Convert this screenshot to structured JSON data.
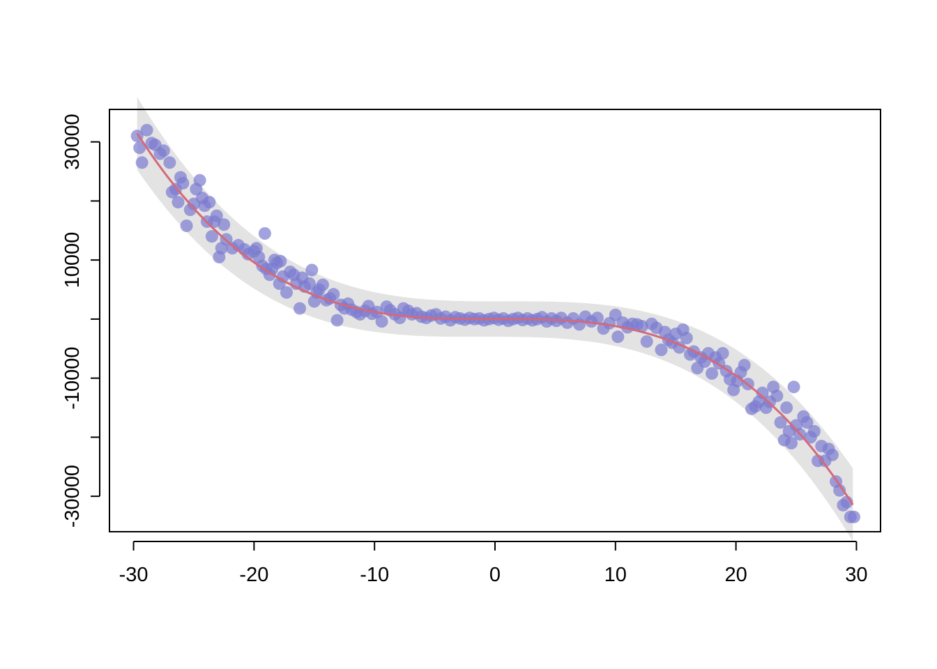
{
  "chart_data": {
    "type": "scatter",
    "title": "",
    "xlabel": "",
    "ylabel": "",
    "xlim": [
      -32,
      32
    ],
    "ylim": [
      -36000,
      35500
    ],
    "x_ticks": [
      "-30",
      "-20",
      "-10",
      "0",
      "10",
      "20",
      "30"
    ],
    "y_ticks": [
      "-30000",
      "-10000",
      "10000",
      "30000"
    ],
    "grid": false,
    "legend": "none",
    "colors": {
      "points": "#7b7bd0",
      "fit": "#d4697a",
      "band": "#e3e3e3"
    },
    "x_tick_values": [
      -30,
      -20,
      -10,
      0,
      10,
      20,
      30
    ],
    "y_tick_values": [
      -30000,
      -10000,
      10000,
      30000
    ],
    "fit_coefficients": [
      0,
      0,
      0,
      -1.2
    ],
    "band_halfwidth": [
      3000,
      0,
      3.6
    ],
    "points": [
      [
        -29.7,
        31000
      ],
      [
        -29.5,
        29000
      ],
      [
        -29.3,
        26500
      ],
      [
        -28.9,
        32000
      ],
      [
        -28.5,
        29800
      ],
      [
        -28.2,
        29500
      ],
      [
        -27.8,
        28000
      ],
      [
        -27.5,
        28500
      ],
      [
        -27.0,
        26500
      ],
      [
        -26.8,
        21500
      ],
      [
        -26.5,
        22000
      ],
      [
        -26.3,
        19800
      ],
      [
        -26.1,
        24000
      ],
      [
        -25.9,
        23000
      ],
      [
        -25.6,
        15800
      ],
      [
        -25.3,
        18500
      ],
      [
        -25.0,
        19500
      ],
      [
        -24.8,
        22000
      ],
      [
        -24.5,
        23500
      ],
      [
        -24.3,
        20500
      ],
      [
        -24.1,
        19200
      ],
      [
        -23.9,
        16500
      ],
      [
        -23.7,
        19800
      ],
      [
        -23.5,
        14000
      ],
      [
        -23.3,
        16500
      ],
      [
        -23.1,
        17500
      ],
      [
        -22.9,
        10500
      ],
      [
        -22.7,
        12000
      ],
      [
        -22.5,
        16000
      ],
      [
        -22.3,
        13500
      ],
      [
        -21.8,
        12000
      ],
      [
        -21.3,
        12500
      ],
      [
        -20.8,
        11800
      ],
      [
        -20.5,
        11000
      ],
      [
        -20.0,
        11500
      ],
      [
        -19.8,
        12000
      ],
      [
        -19.6,
        10500
      ],
      [
        -19.3,
        9000
      ],
      [
        -19.1,
        14500
      ],
      [
        -19.0,
        8500
      ],
      [
        -18.7,
        7500
      ],
      [
        -18.5,
        8500
      ],
      [
        -18.3,
        10000
      ],
      [
        -18.1,
        9500
      ],
      [
        -17.9,
        6000
      ],
      [
        -17.8,
        9800
      ],
      [
        -17.6,
        7200
      ],
      [
        -17.3,
        4500
      ],
      [
        -17.0,
        8000
      ],
      [
        -16.7,
        7500
      ],
      [
        -16.5,
        6000
      ],
      [
        -16.2,
        1800
      ],
      [
        -16.0,
        7000
      ],
      [
        -15.8,
        5500
      ],
      [
        -15.4,
        6000
      ],
      [
        -15.2,
        8300
      ],
      [
        -15.0,
        3000
      ],
      [
        -14.8,
        4500
      ],
      [
        -14.6,
        5000
      ],
      [
        -14.3,
        5800
      ],
      [
        -14.0,
        3200
      ],
      [
        -13.7,
        3500
      ],
      [
        -13.4,
        4200
      ],
      [
        -13.1,
        -200
      ],
      [
        -12.8,
        2400
      ],
      [
        -12.5,
        1800
      ],
      [
        -12.2,
        2600
      ],
      [
        -11.9,
        1600
      ],
      [
        -11.5,
        1200
      ],
      [
        -11.2,
        800
      ],
      [
        -10.8,
        1400
      ],
      [
        -10.5,
        2200
      ],
      [
        -10.2,
        900
      ],
      [
        -9.8,
        1200
      ],
      [
        -9.4,
        -400
      ],
      [
        -9.0,
        2100
      ],
      [
        -8.7,
        1500
      ],
      [
        -8.3,
        800
      ],
      [
        -7.9,
        200
      ],
      [
        -7.6,
        1800
      ],
      [
        -7.2,
        1400
      ],
      [
        -6.9,
        800
      ],
      [
        -6.5,
        1000
      ],
      [
        -6.1,
        400
      ],
      [
        -5.7,
        200
      ],
      [
        -5.3,
        600
      ],
      [
        -4.9,
        800
      ],
      [
        -4.5,
        100
      ],
      [
        -4.1,
        400
      ],
      [
        -3.7,
        -200
      ],
      [
        -3.3,
        300
      ],
      [
        -2.9,
        100
      ],
      [
        -2.5,
        -100
      ],
      [
        -2.1,
        200
      ],
      [
        -1.7,
        0
      ],
      [
        -1.3,
        100
      ],
      [
        -0.9,
        -200
      ],
      [
        -0.5,
        0
      ],
      [
        -0.1,
        200
      ],
      [
        0.3,
        -100
      ],
      [
        0.7,
        100
      ],
      [
        1.1,
        -300
      ],
      [
        1.5,
        0
      ],
      [
        1.9,
        200
      ],
      [
        2.3,
        -150
      ],
      [
        2.7,
        100
      ],
      [
        3.1,
        -200
      ],
      [
        3.5,
        0
      ],
      [
        3.9,
        300
      ],
      [
        4.3,
        -400
      ],
      [
        4.7,
        100
      ],
      [
        5.1,
        -300
      ],
      [
        5.5,
        200
      ],
      [
        6.0,
        -600
      ],
      [
        6.5,
        100
      ],
      [
        7.0,
        -900
      ],
      [
        7.5,
        400
      ],
      [
        8.0,
        -400
      ],
      [
        8.5,
        200
      ],
      [
        9.0,
        -1600
      ],
      [
        9.5,
        -700
      ],
      [
        10.0,
        700
      ],
      [
        10.2,
        -3000
      ],
      [
        10.6,
        -600
      ],
      [
        11.0,
        -1400
      ],
      [
        11.4,
        -800
      ],
      [
        11.8,
        -900
      ],
      [
        12.2,
        -1200
      ],
      [
        12.6,
        -3800
      ],
      [
        13.0,
        -800
      ],
      [
        13.4,
        -1500
      ],
      [
        13.8,
        -5200
      ],
      [
        14.1,
        -2200
      ],
      [
        14.4,
        -3500
      ],
      [
        14.7,
        -4000
      ],
      [
        15.0,
        -2500
      ],
      [
        15.3,
        -4800
      ],
      [
        15.6,
        -1800
      ],
      [
        15.9,
        -3200
      ],
      [
        16.2,
        -6000
      ],
      [
        16.5,
        -5500
      ],
      [
        16.8,
        -8300
      ],
      [
        17.1,
        -6500
      ],
      [
        17.4,
        -7200
      ],
      [
        17.7,
        -5800
      ],
      [
        18.0,
        -9200
      ],
      [
        18.3,
        -6500
      ],
      [
        18.6,
        -7500
      ],
      [
        18.9,
        -5800
      ],
      [
        19.2,
        -8800
      ],
      [
        19.5,
        -10200
      ],
      [
        19.8,
        -12000
      ],
      [
        20.1,
        -10500
      ],
      [
        20.4,
        -9000
      ],
      [
        20.7,
        -7800
      ],
      [
        21.0,
        -11000
      ],
      [
        21.3,
        -15200
      ],
      [
        21.6,
        -14800
      ],
      [
        21.9,
        -14000
      ],
      [
        22.2,
        -12500
      ],
      [
        22.5,
        -15000
      ],
      [
        22.8,
        -14000
      ],
      [
        23.1,
        -11500
      ],
      [
        23.4,
        -13000
      ],
      [
        23.7,
        -17500
      ],
      [
        24.0,
        -20500
      ],
      [
        24.2,
        -15000
      ],
      [
        24.4,
        -19000
      ],
      [
        24.6,
        -21000
      ],
      [
        24.8,
        -11500
      ],
      [
        25.0,
        -18000
      ],
      [
        25.3,
        -19500
      ],
      [
        25.6,
        -16500
      ],
      [
        25.9,
        -17500
      ],
      [
        26.2,
        -20000
      ],
      [
        26.5,
        -19000
      ],
      [
        26.8,
        -24000
      ],
      [
        27.1,
        -21500
      ],
      [
        27.4,
        -24000
      ],
      [
        27.7,
        -22000
      ],
      [
        28.0,
        -23000
      ],
      [
        28.3,
        -27500
      ],
      [
        28.6,
        -29000
      ],
      [
        28.9,
        -31500
      ],
      [
        29.2,
        -31000
      ],
      [
        29.5,
        -33500
      ],
      [
        29.8,
        -33500
      ]
    ]
  }
}
